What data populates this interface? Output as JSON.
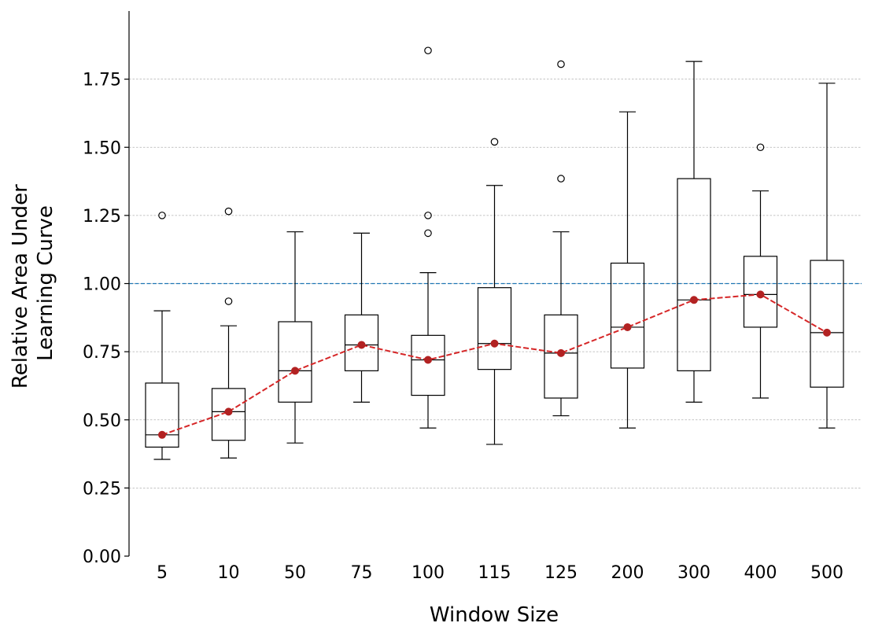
{
  "chart_data": {
    "type": "box",
    "title": "",
    "xlabel": "Window Size",
    "ylabel_lines": [
      "Relative Area Under",
      "Learning Curve"
    ],
    "ylim": [
      0.0,
      2.0
    ],
    "yticks": [
      "0.00",
      "0.25",
      "0.50",
      "0.75",
      "1.00",
      "1.25",
      "1.50",
      "1.75"
    ],
    "y_tick_values": [
      0.0,
      0.25,
      0.5,
      0.75,
      1.0,
      1.25,
      1.5,
      1.75
    ],
    "grid": "horizontal dotted",
    "reference_line": {
      "y": 1.0,
      "color": "#1f77b4",
      "style": "dashed"
    },
    "categories": [
      "5",
      "10",
      "50",
      "75",
      "100",
      "115",
      "125",
      "200",
      "300",
      "400",
      "500"
    ],
    "boxes": [
      {
        "whisker_low": 0.355,
        "q1": 0.4,
        "median": 0.445,
        "q3": 0.635,
        "whisker_high": 0.9,
        "outliers": [
          1.25
        ]
      },
      {
        "whisker_low": 0.36,
        "q1": 0.425,
        "median": 0.53,
        "q3": 0.615,
        "whisker_high": 0.845,
        "outliers": [
          0.935,
          1.265
        ]
      },
      {
        "whisker_low": 0.415,
        "q1": 0.565,
        "median": 0.68,
        "q3": 0.86,
        "whisker_high": 1.19,
        "outliers": []
      },
      {
        "whisker_low": 0.565,
        "q1": 0.68,
        "median": 0.775,
        "q3": 0.885,
        "whisker_high": 1.185,
        "outliers": []
      },
      {
        "whisker_low": 0.47,
        "q1": 0.59,
        "median": 0.72,
        "q3": 0.81,
        "whisker_high": 1.04,
        "outliers": [
          1.185,
          1.25,
          1.855
        ]
      },
      {
        "whisker_low": 0.41,
        "q1": 0.685,
        "median": 0.78,
        "q3": 0.985,
        "whisker_high": 1.36,
        "outliers": [
          1.52
        ]
      },
      {
        "whisker_low": 0.515,
        "q1": 0.58,
        "median": 0.745,
        "q3": 0.885,
        "whisker_high": 1.19,
        "outliers": [
          1.385,
          1.805
        ]
      },
      {
        "whisker_low": 0.47,
        "q1": 0.69,
        "median": 0.84,
        "q3": 1.075,
        "whisker_high": 1.63,
        "outliers": []
      },
      {
        "whisker_low": 0.565,
        "q1": 0.68,
        "median": 0.94,
        "q3": 1.385,
        "whisker_high": 1.815,
        "outliers": []
      },
      {
        "whisker_low": 0.58,
        "q1": 0.84,
        "median": 0.96,
        "q3": 1.1,
        "whisker_high": 1.34,
        "outliers": [
          1.5
        ]
      },
      {
        "whisker_low": 0.47,
        "q1": 0.62,
        "median": 0.82,
        "q3": 1.085,
        "whisker_high": 1.735,
        "outliers": []
      }
    ],
    "median_line": {
      "color": "#d62728",
      "style": "dashed",
      "values": [
        0.445,
        0.53,
        0.68,
        0.775,
        0.72,
        0.78,
        0.745,
        0.84,
        0.94,
        0.96,
        0.82
      ]
    }
  }
}
